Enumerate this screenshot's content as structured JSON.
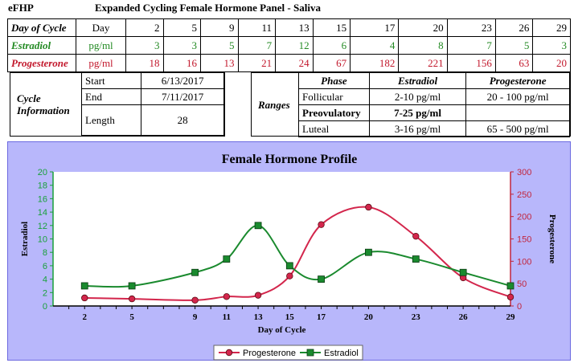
{
  "header": {
    "code": "eFHP",
    "title": "Expanded Cycling Female Hormone Panel - Saliva"
  },
  "cycle_table": {
    "rows": [
      {
        "label": "Day of Cycle",
        "unit": "Day",
        "values": [
          "2",
          "5",
          "9",
          "11",
          "13",
          "15",
          "17",
          "20",
          "23",
          "26",
          "29"
        ]
      },
      {
        "label": "Estradiol",
        "unit": "pg/ml",
        "values": [
          "3",
          "3",
          "5",
          "7",
          "12",
          "6",
          "4",
          "8",
          "7",
          "5",
          "3"
        ]
      },
      {
        "label": "Progesterone",
        "unit": "pg/ml",
        "values": [
          "18",
          "16",
          "13",
          "21",
          "24",
          "67",
          "182",
          "221",
          "156",
          "63",
          "20"
        ]
      }
    ]
  },
  "cycle_info": {
    "label_line1": "Cycle",
    "label_line2": "Information",
    "start_label": "Start",
    "start_value": "6/13/2017",
    "end_label": "End",
    "end_value": "7/11/2017",
    "length_label": "Length",
    "length_value": "28"
  },
  "ranges": {
    "label": "Ranges",
    "headers": [
      "Phase",
      "Estradiol",
      "Progesterone"
    ],
    "rows": [
      [
        "Follicular",
        "2-10 pg/ml",
        "20 - 100 pg/ml"
      ],
      [
        "Preovulatory",
        "7-25 pg/ml",
        ""
      ],
      [
        "Luteal",
        "3-16 pg/ml",
        "65 - 500 pg/ml"
      ]
    ]
  },
  "chart_data": {
    "type": "line",
    "title": "Female Hormone Profile",
    "xlabel": "Day of Cycle",
    "ylabel": "Estradiol",
    "y2label": "Progesterone",
    "categories": [
      "2",
      "5",
      "9",
      "11",
      "13",
      "15",
      "17",
      "20",
      "23",
      "26",
      "29"
    ],
    "x": [
      2,
      5,
      9,
      11,
      13,
      15,
      17,
      20,
      23,
      26,
      29
    ],
    "ylim": [
      0,
      20
    ],
    "y2lim": [
      0,
      300
    ],
    "yticks": [
      "0",
      "2",
      "4",
      "6",
      "8",
      "10",
      "12",
      "14",
      "16",
      "18",
      "20"
    ],
    "y2ticks": [
      "0",
      "50",
      "100",
      "150",
      "200",
      "250",
      "300"
    ],
    "series": [
      {
        "name": "Progesterone",
        "axis": "right",
        "values": [
          18,
          16,
          13,
          21,
          24,
          67,
          182,
          221,
          156,
          63,
          20
        ]
      },
      {
        "name": "Estradiol",
        "axis": "left",
        "values": [
          3,
          3,
          5,
          7,
          12,
          6,
          4,
          8,
          7,
          5,
          3
        ]
      }
    ],
    "colors": {
      "progesterone": "#d3264c",
      "estradiol": "#1a8a2e",
      "y_axis_left": "#19a03a",
      "y_axis_right": "#c1253d",
      "panel_bg": "#b8b7fb"
    },
    "grid": false,
    "legend_position": "bottom"
  }
}
